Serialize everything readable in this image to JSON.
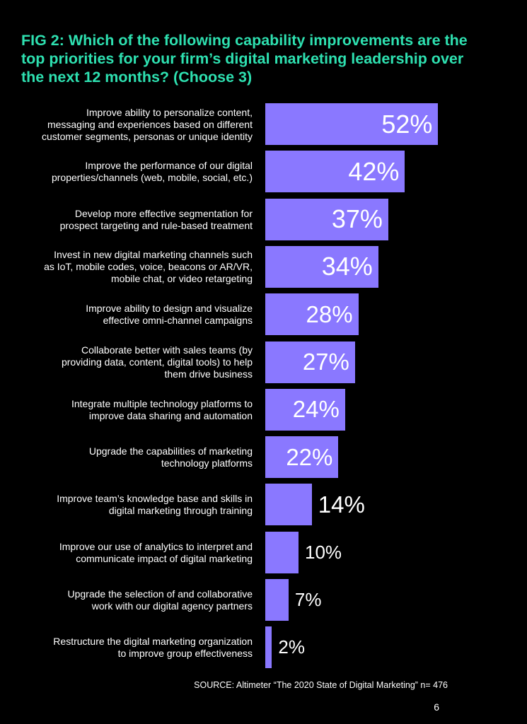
{
  "title": "FIG 2: Which of the following capability improvements are the top priorities for your firm’s digital marketing leadership over the next 12 months? (Choose 3)",
  "source": "SOURCE: Altimeter “The 2020 State of Digital Marketing” n= 476",
  "page_number": "6",
  "colors": {
    "title": "#2ee0b0",
    "bar": "#8a78ff",
    "background": "#000000",
    "text": "#ffffff"
  },
  "chart_data": {
    "type": "bar",
    "orientation": "horizontal",
    "title": "FIG 2: Which of the following capability improvements are the top priorities for your firm’s digital marketing leadership over the next 12 months? (Choose 3)",
    "xlim": [
      0,
      100
    ],
    "grid": false,
    "categories": [
      "Improve ability to personalize content, messaging and experiences based on different customer segments, personas or unique identity",
      "Improve the performance of our digital properties/channels (web, mobile, social, etc.)",
      "Develop more effective segmentation for prospect targeting and rule-based treatment",
      "Invest in new digital marketing channels such as IoT, mobile codes, voice, beacons or AR/VR, mobile chat, or video retargeting",
      "Improve ability to design and visualize effective omni-channel campaigns",
      "Collaborate better with sales teams (by providing data, content, digital tools) to help them drive business",
      "Integrate multiple technology platforms to improve data sharing and automation",
      "Upgrade the capabilities of marketing technology platforms",
      "Improve team’s knowledge base and skills in digital marketing through training",
      "Improve our use of analytics to interpret and communicate impact of digital marketing",
      "Upgrade the selection of and collaborative work with our digital agency partners",
      "Restructure the digital marketing organization to improve group effectiveness"
    ],
    "label_lines": [
      [
        "Improve ability to personalize content,",
        "messaging and experiences based on different",
        "customer segments, personas or unique identity"
      ],
      [
        "Improve the performance of our digital",
        "properties/channels (web, mobile, social, etc.)"
      ],
      [
        "Develop more effective segmentation for",
        "prospect targeting and rule-based treatment"
      ],
      [
        "Invest in new digital marketing channels such",
        "as IoT, mobile codes, voice, beacons or AR/VR,",
        "mobile chat, or video retargeting"
      ],
      [
        "Improve ability to design and visualize",
        "effective omni-channel campaigns"
      ],
      [
        "Collaborate better with sales teams (by",
        "providing data, content, digital tools) to help",
        "them drive business"
      ],
      [
        "Integrate multiple technology platforms to",
        "improve data sharing and automation"
      ],
      [
        "Upgrade the capabilities of marketing",
        "technology platforms"
      ],
      [
        "Improve team’s knowledge base and skills in",
        "digital marketing through training"
      ],
      [
        "Improve our use of analytics to interpret and",
        "communicate impact of digital marketing"
      ],
      [
        "Upgrade the selection of and collaborative",
        "work with our digital agency partners"
      ],
      [
        "Restructure the digital marketing organization",
        "to improve group effectiveness"
      ]
    ],
    "values": [
      52,
      42,
      37,
      34,
      28,
      27,
      24,
      22,
      14,
      10,
      7,
      2
    ],
    "value_labels": [
      "52%",
      "42%",
      "37%",
      "34%",
      "28%",
      "27%",
      "24%",
      "22%",
      "14%",
      "10%",
      "7%",
      "2%"
    ]
  }
}
